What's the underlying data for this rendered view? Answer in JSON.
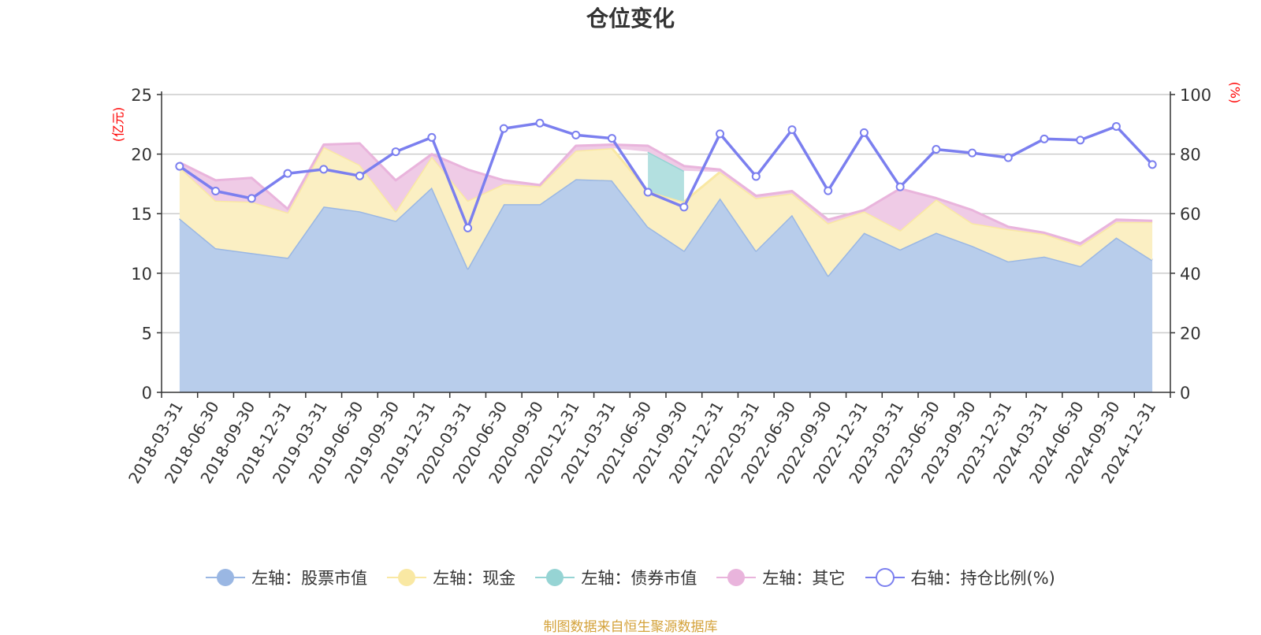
{
  "title": "仓位变化",
  "source_note": "制图数据来自恒生聚源数据库",
  "units": {
    "left": "(亿元)",
    "right": "(%)"
  },
  "legend": [
    {
      "label": "左轴：股票市值",
      "color": "#9ab7e3",
      "marker": "filled-circle"
    },
    {
      "label": "左轴：现金",
      "color": "#f9e8a3",
      "marker": "filled-circle"
    },
    {
      "label": "左轴：债券市值",
      "color": "#96d4d4",
      "marker": "filled-circle"
    },
    {
      "label": "左轴：其它",
      "color": "#e9b4dc",
      "marker": "filled-circle"
    },
    {
      "label": "右轴：持仓比例(%)",
      "color": "#7b7fef",
      "marker": "hollow-circle"
    }
  ],
  "chart_data": {
    "type": "area",
    "categories": [
      "2018-03-31",
      "2018-06-30",
      "2018-09-30",
      "2018-12-31",
      "2019-03-31",
      "2019-06-30",
      "2019-09-30",
      "2019-12-31",
      "2020-03-31",
      "2020-06-30",
      "2020-09-30",
      "2020-12-31",
      "2021-03-31",
      "2021-06-30",
      "2021-09-30",
      "2021-12-31",
      "2022-03-31",
      "2022-06-30",
      "2022-09-30",
      "2022-12-31",
      "2023-03-31",
      "2023-06-30",
      "2023-09-30",
      "2023-12-31",
      "2024-03-31",
      "2024-06-30",
      "2024-09-30",
      "2024-12-31"
    ],
    "y_left": {
      "label": "(亿元)",
      "min": 0,
      "max": 25,
      "ticks": [
        0,
        5,
        10,
        15,
        20,
        25
      ]
    },
    "y_right": {
      "label": "(%)",
      "min": 0,
      "max": 100,
      "ticks": [
        0,
        20,
        40,
        60,
        80,
        100
      ]
    },
    "grid": true,
    "legend_position": "bottom",
    "series": [
      {
        "name": "左轴：股票市值",
        "axis": "left",
        "stack": true,
        "color": "#9ab7e3",
        "fill": "#b8cdeb",
        "values": [
          14.6,
          12.1,
          11.7,
          11.3,
          15.6,
          15.2,
          14.4,
          17.2,
          10.4,
          15.8,
          15.8,
          17.9,
          17.8,
          13.9,
          11.9,
          16.3,
          11.9,
          14.9,
          9.8,
          13.4,
          12.0,
          13.4,
          12.3,
          11.0,
          11.4,
          10.6,
          13.0,
          11.1
        ]
      },
      {
        "name": "左轴：现金",
        "axis": "left",
        "stack": true,
        "color": "#f9e8a3",
        "fill": "#fbefc3",
        "values": [
          4.3,
          4.0,
          4.3,
          3.8,
          5.0,
          3.9,
          0.8,
          2.6,
          5.7,
          1.7,
          1.5,
          2.4,
          2.7,
          3.0,
          4.1,
          2.2,
          4.4,
          1.8,
          4.4,
          1.8,
          1.6,
          2.8,
          1.9,
          2.7,
          1.9,
          1.7,
          1.3,
          3.2
        ]
      },
      {
        "name": "左轴：债券市值",
        "axis": "left",
        "stack": true,
        "color": "#96d4d4",
        "fill": "#b3e0e0",
        "values": [
          0,
          0,
          0,
          0,
          0,
          0,
          0,
          0,
          0,
          0,
          0,
          0,
          0,
          3.3,
          2.6,
          0,
          0,
          0,
          0,
          0,
          0,
          0,
          0,
          0,
          0,
          0,
          0,
          0
        ]
      },
      {
        "name": "左轴：其它",
        "axis": "left",
        "stack": true,
        "color": "#e9b4dc",
        "fill": "#efcbe6",
        "values": [
          0.4,
          1.7,
          2.0,
          0.3,
          0.2,
          1.8,
          2.6,
          0.2,
          2.6,
          0.3,
          0.1,
          0.4,
          0.3,
          0.5,
          0.4,
          0.2,
          0.2,
          0.2,
          0.3,
          0.1,
          3.5,
          0.1,
          1.1,
          0.2,
          0.1,
          0.2,
          0.2,
          0.1
        ]
      },
      {
        "name": "右轴：持仓比例(%)",
        "axis": "right",
        "stack": false,
        "color": "#7b7fef",
        "values": [
          75.9,
          67.6,
          65.1,
          73.5,
          74.9,
          72.7,
          80.8,
          85.6,
          55.2,
          88.6,
          90.4,
          86.4,
          85.3,
          67.2,
          62.2,
          86.8,
          72.5,
          88.2,
          67.7,
          87.2,
          69.0,
          81.6,
          80.4,
          78.8,
          85.1,
          84.7,
          89.3,
          76.5
        ]
      }
    ]
  }
}
